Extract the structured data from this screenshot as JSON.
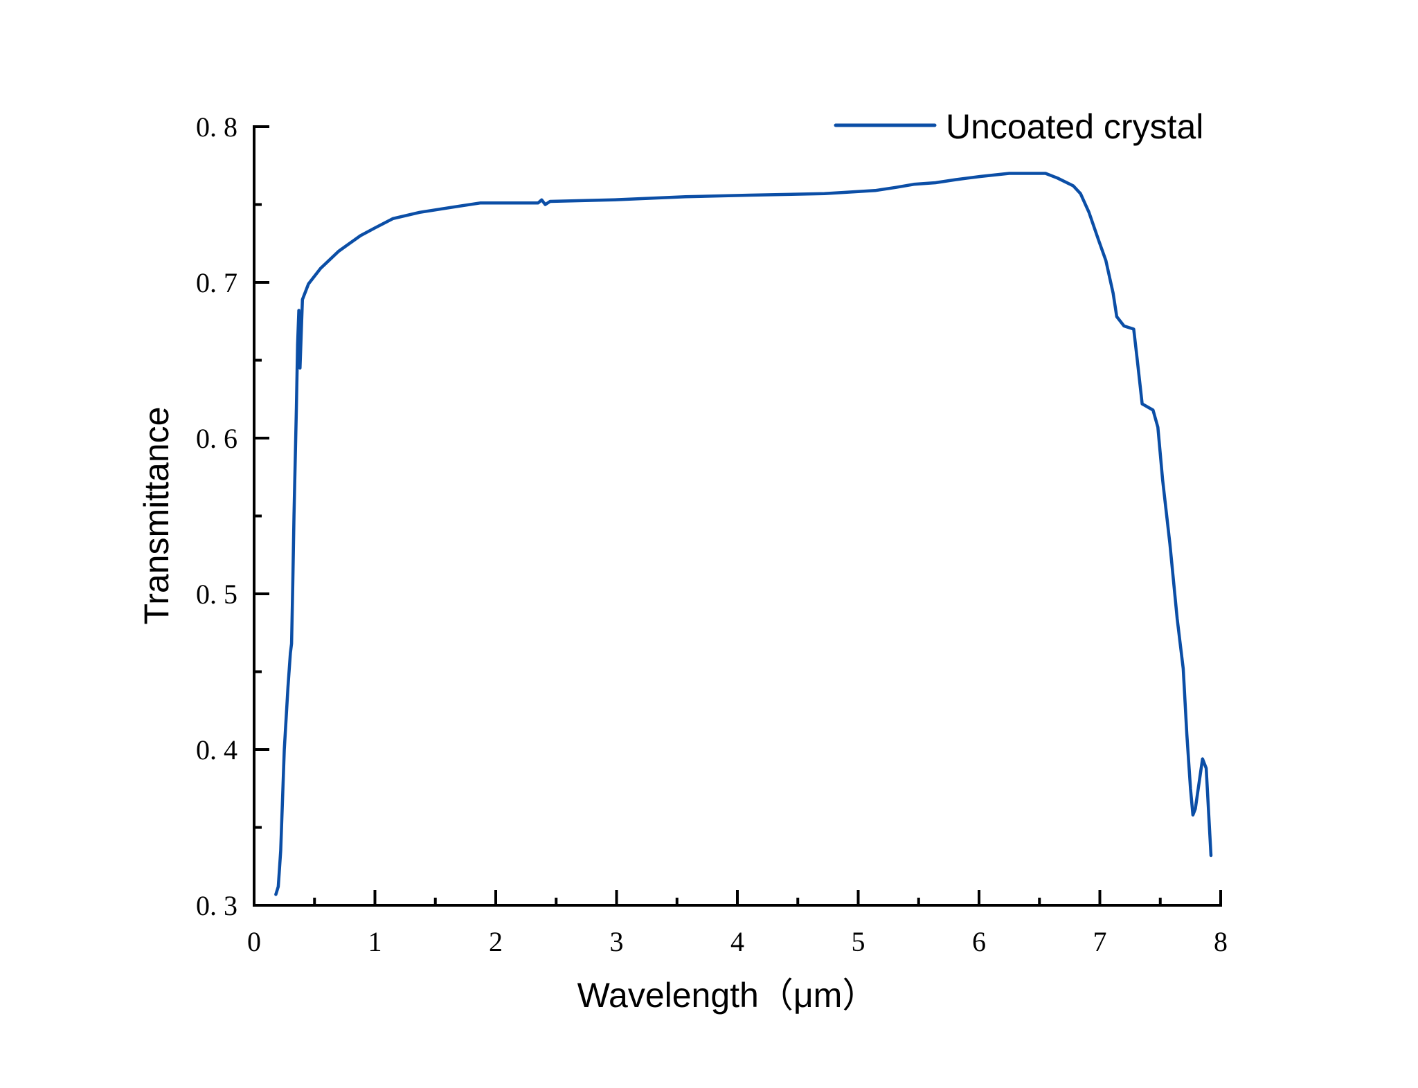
{
  "chart_data": {
    "type": "line",
    "title": "",
    "xlabel": "Wavelength（μm）",
    "ylabel": "Transmittance",
    "xlim": [
      0,
      8
    ],
    "ylim": [
      0.3,
      0.8
    ],
    "xticks": [
      0,
      1,
      2,
      3,
      4,
      5,
      6,
      7,
      8
    ],
    "xtick_labels": [
      "0",
      "1",
      "2",
      "3",
      "4",
      "5",
      "6",
      "7",
      "8"
    ],
    "x_minor_ticks": [
      0.5,
      1.5,
      2.5,
      3.5,
      4.5,
      5.5,
      6.5,
      7.5
    ],
    "yticks": [
      0.3,
      0.4,
      0.5,
      0.6,
      0.7,
      0.8
    ],
    "ytick_labels": [
      "0. 3",
      "0. 4",
      "0. 5",
      "0. 6",
      "0. 7",
      "0. 8"
    ],
    "y_minor_ticks": [
      0.35,
      0.45,
      0.55,
      0.65,
      0.75
    ],
    "grid": false,
    "legend_position": "upper right",
    "series": [
      {
        "name": "Uncoated crystal",
        "color": "#0b4ea6",
        "x": [
          0.18,
          0.2,
          0.22,
          0.25,
          0.28,
          0.3,
          0.31,
          0.32,
          0.33,
          0.35,
          0.36,
          0.37,
          0.38,
          0.4,
          0.45,
          0.55,
          0.7,
          0.88,
          1.0,
          1.15,
          1.37,
          1.7,
          1.87,
          2.35,
          2.38,
          2.41,
          2.45,
          2.97,
          3.57,
          4.1,
          4.72,
          5.14,
          5.31,
          5.46,
          5.64,
          5.81,
          6.01,
          6.25,
          6.55,
          6.65,
          6.78,
          6.84,
          6.91,
          6.99,
          7.05,
          7.11,
          7.14,
          7.2,
          7.28,
          7.31,
          7.35,
          7.44,
          7.48,
          7.52,
          7.58,
          7.64,
          7.69,
          7.72,
          7.75,
          7.77,
          7.79,
          7.85,
          7.88,
          7.92
        ],
        "y": [
          0.307,
          0.312,
          0.335,
          0.4,
          0.44,
          0.462,
          0.468,
          0.505,
          0.55,
          0.62,
          0.66,
          0.682,
          0.645,
          0.689,
          0.699,
          0.709,
          0.72,
          0.73,
          0.735,
          0.741,
          0.745,
          0.749,
          0.751,
          0.751,
          0.753,
          0.75,
          0.752,
          0.753,
          0.755,
          0.756,
          0.757,
          0.759,
          0.761,
          0.763,
          0.764,
          0.766,
          0.768,
          0.77,
          0.77,
          0.767,
          0.762,
          0.757,
          0.745,
          0.727,
          0.714,
          0.693,
          0.678,
          0.672,
          0.67,
          0.65,
          0.622,
          0.618,
          0.607,
          0.573,
          0.532,
          0.484,
          0.452,
          0.41,
          0.375,
          0.358,
          0.362,
          0.394,
          0.388,
          0.332
        ]
      }
    ]
  }
}
